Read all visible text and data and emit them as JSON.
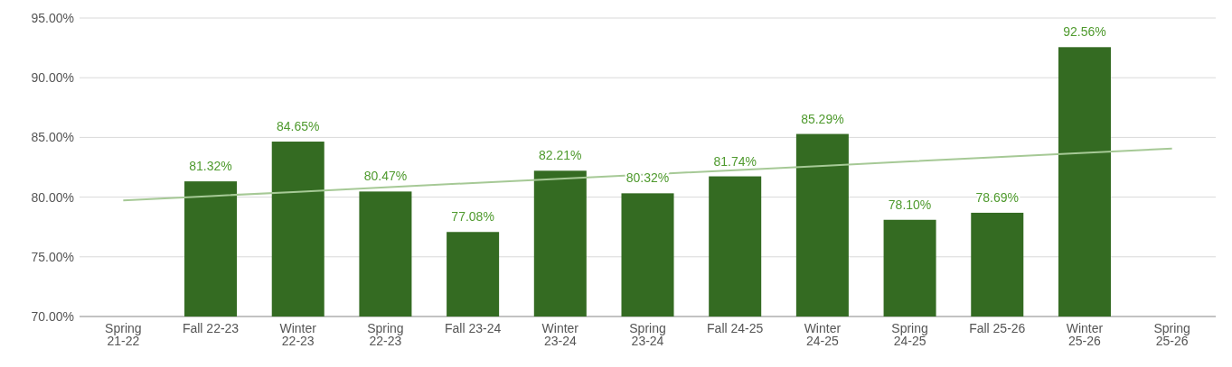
{
  "chart_data": {
    "type": "bar",
    "categories": [
      "Spring\n21-22",
      "Fall 22-23",
      "Winter\n22-23",
      "Spring\n22-23",
      "Fall 23-24",
      "Winter\n23-24",
      "Spring\n23-24",
      "Fall 24-25",
      "Winter\n24-25",
      "Spring\n24-25",
      "Fall 25-26",
      "Winter\n25-26",
      "Spring\n25-26"
    ],
    "series": [
      {
        "color": "#346b22",
        "values": [
          null,
          81.32,
          84.65,
          80.47,
          77.08,
          82.21,
          80.32,
          81.74,
          85.29,
          78.1,
          78.69,
          92.56,
          null
        ],
        "value_labels": [
          null,
          "81.32%",
          "84.65%",
          "80.47%",
          "77.08%",
          "82.21%",
          "80.32%",
          "81.74%",
          "85.29%",
          "78.10%",
          "78.69%",
          "92.56%",
          null
        ]
      },
      {
        "type": "line",
        "color": "#a6c996",
        "values": [
          79.73,
          80.09,
          80.45,
          80.82,
          81.18,
          81.54,
          81.9,
          82.26,
          82.62,
          82.99,
          83.35,
          83.71,
          84.07
        ]
      }
    ],
    "ylim": [
      70,
      95
    ],
    "yticks": [
      {
        "value": 70,
        "label": "70.00%"
      },
      {
        "value": 75,
        "label": "75.00%"
      },
      {
        "value": 80,
        "label": "80.00%"
      },
      {
        "value": 85,
        "label": "85.00%"
      },
      {
        "value": 90,
        "label": "90.00%"
      },
      {
        "value": 95,
        "label": "95.00%"
      }
    ],
    "grid": "y"
  }
}
